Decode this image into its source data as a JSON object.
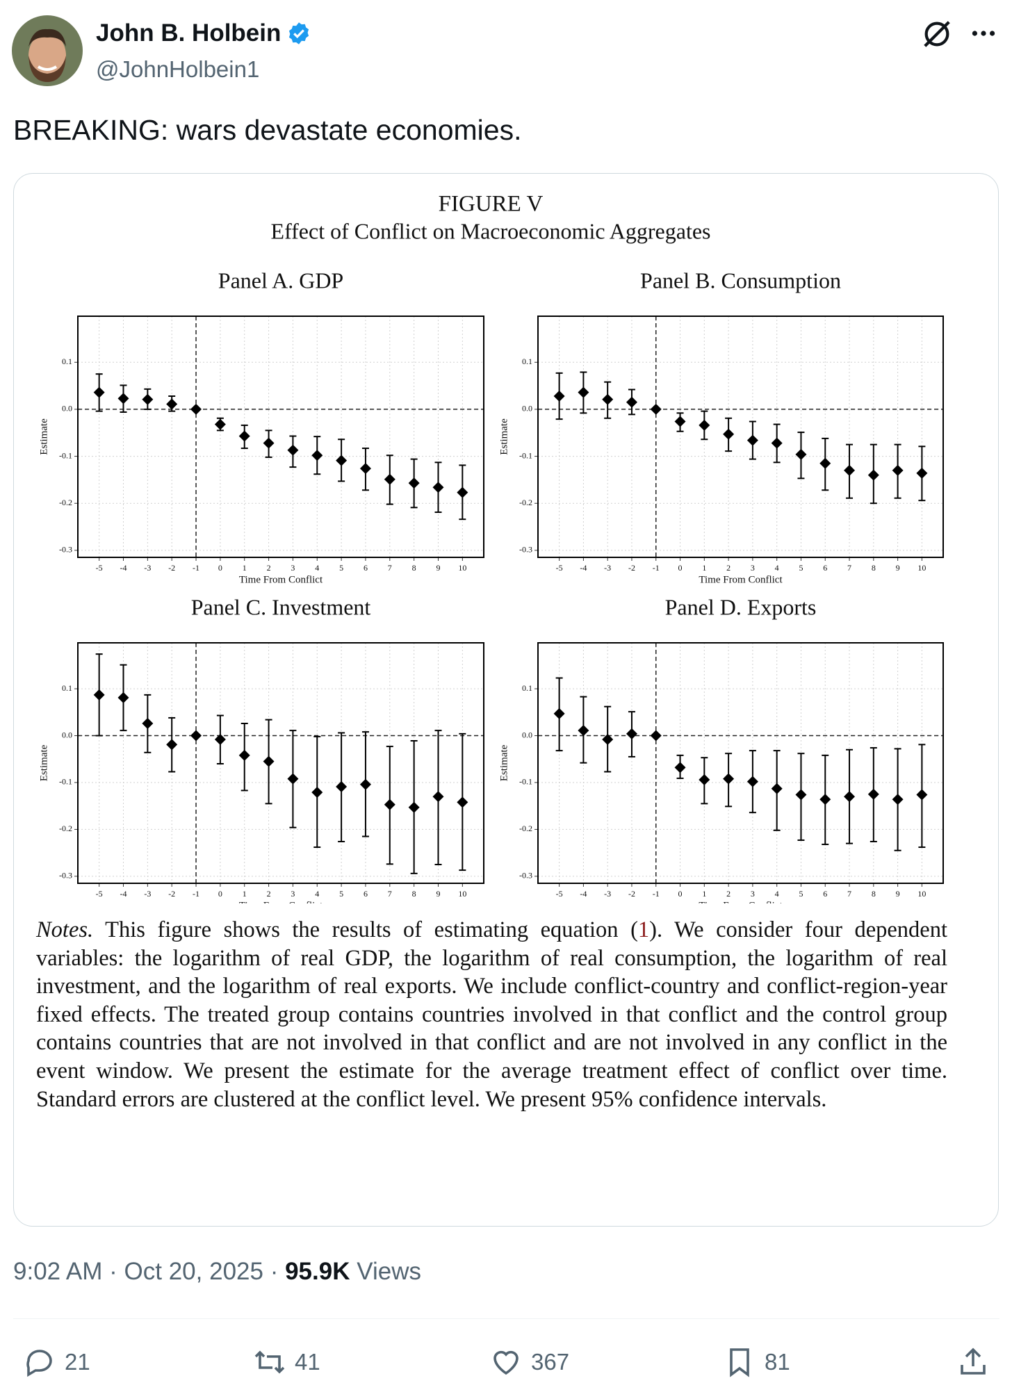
{
  "tweet": {
    "name": "John B. Holbein",
    "handle": "@JohnHolbein1",
    "text": "BREAKING: wars devastate economies.",
    "time": "9:02 AM",
    "separator": "·",
    "date": "Oct 20, 2025",
    "views": "95.9K",
    "views_label": "Views",
    "replies": 21,
    "reposts": 41,
    "likes": 367,
    "bookmarks": 81
  },
  "figure": {
    "title": "FIGURE V",
    "subtitle": "Effect of Conflict on Macroeconomic Aggregates"
  },
  "notes": {
    "label": "Notes.",
    "text_before": "This figure shows the results of estimating equation (",
    "ref": "1",
    "text_after": "). We consider four dependent variables: the logarithm of real GDP, the logarithm of real consumption, the logarithm of real investment, and the logarithm of real exports. We include conflict-country and conflict-region-year fixed effects. The treated group contains countries involved in that conflict and the control group contains countries that are not involved in that conflict and are not involved in any conflict in the event window. We present the estimate for the average treatment effect of conflict over time. Standard errors are clustered at the conflict level. We present 95% confidence intervals."
  },
  "chart_data": [
    {
      "type": "errorbar",
      "title": "Panel A. GDP",
      "xlabel": "Time From Conflict",
      "ylabel": "Estimate",
      "color": "#000000",
      "x": [
        -5,
        -4,
        -3,
        -2,
        -1,
        0,
        1,
        2,
        3,
        4,
        5,
        6,
        7,
        8,
        9,
        10
      ],
      "values": [
        0.036,
        0.023,
        0.021,
        0.011,
        0,
        -0.032,
        -0.057,
        -0.072,
        -0.087,
        -0.098,
        -0.109,
        -0.126,
        -0.149,
        -0.157,
        -0.166,
        -0.177
      ],
      "lower": [
        -0.004,
        -0.006,
        0.0,
        -0.004,
        null,
        -0.045,
        -0.083,
        -0.102,
        -0.123,
        -0.138,
        -0.153,
        -0.172,
        -0.202,
        -0.209,
        -0.219,
        -0.234
      ],
      "upper": [
        0.075,
        0.051,
        0.043,
        0.028,
        null,
        -0.019,
        -0.034,
        -0.045,
        -0.057,
        -0.058,
        -0.064,
        -0.083,
        -0.098,
        -0.106,
        -0.113,
        -0.119
      ],
      "xlim": [
        -5.88,
        10.88
      ],
      "ylim": [
        -0.315,
        0.198
      ],
      "xticks": [
        -5,
        -4,
        -3,
        -2,
        -1,
        0,
        1,
        2,
        3,
        4,
        5,
        6,
        7,
        8,
        9,
        10
      ],
      "yticks": [
        -0.3,
        -0.2,
        -0.1,
        {
          "value": 0,
          "label": "0.0"
        },
        0.1
      ],
      "grid": true,
      "reference_lines": {
        "x": -1,
        "y": 0
      }
    },
    {
      "type": "errorbar",
      "title": "Panel B. Consumption",
      "xlabel": "Time From Conflict",
      "ylabel": "Estimate",
      "color": "#000000",
      "x": [
        -5,
        -4,
        -3,
        -2,
        -1,
        0,
        1,
        2,
        3,
        4,
        5,
        6,
        7,
        8,
        9,
        10
      ],
      "values": [
        0.028,
        0.036,
        0.021,
        0.015,
        0,
        -0.026,
        -0.034,
        -0.053,
        -0.066,
        -0.072,
        -0.096,
        -0.115,
        -0.13,
        -0.14,
        -0.13,
        -0.136
      ],
      "lower": [
        -0.021,
        -0.008,
        -0.019,
        -0.011,
        null,
        -0.047,
        -0.064,
        -0.089,
        -0.106,
        -0.113,
        -0.147,
        -0.172,
        -0.189,
        -0.2,
        -0.189,
        -0.194
      ],
      "upper": [
        0.077,
        0.079,
        0.058,
        0.042,
        null,
        -0.008,
        -0.004,
        -0.019,
        -0.026,
        -0.032,
        -0.049,
        -0.062,
        -0.075,
        -0.075,
        -0.075,
        -0.079
      ],
      "xlim": [
        -5.88,
        10.88
      ],
      "ylim": [
        -0.315,
        0.198
      ],
      "xticks": [
        -5,
        -4,
        -3,
        -2,
        -1,
        0,
        1,
        2,
        3,
        4,
        5,
        6,
        7,
        8,
        9,
        10
      ],
      "yticks": [
        -0.3,
        -0.2,
        -0.1,
        {
          "value": 0,
          "label": "0.0"
        },
        0.1
      ],
      "grid": true,
      "reference_lines": {
        "x": -1,
        "y": 0
      }
    },
    {
      "type": "errorbar",
      "title": "Panel C. Investment",
      "xlabel": "Time From Conflict",
      "ylabel": "Estimate",
      "color": "#000000",
      "x": [
        -5,
        -4,
        -3,
        -2,
        -1,
        0,
        1,
        2,
        3,
        4,
        5,
        6,
        7,
        8,
        9,
        10
      ],
      "values": [
        0.087,
        0.081,
        0.026,
        -0.019,
        0,
        -0.008,
        -0.042,
        -0.055,
        -0.092,
        -0.121,
        -0.109,
        -0.104,
        -0.147,
        -0.153,
        -0.13,
        -0.142
      ],
      "lower": [
        0.0,
        0.011,
        -0.036,
        -0.077,
        null,
        -0.06,
        -0.117,
        -0.145,
        -0.196,
        -0.238,
        -0.226,
        -0.215,
        -0.274,
        -0.294,
        -0.275,
        -0.287
      ],
      "upper": [
        0.174,
        0.151,
        0.087,
        0.038,
        null,
        0.043,
        0.026,
        0.034,
        0.011,
        -0.002,
        0.006,
        0.008,
        -0.023,
        -0.011,
        0.011,
        0.004
      ],
      "xlim": [
        -5.88,
        10.88
      ],
      "ylim": [
        -0.315,
        0.198
      ],
      "xticks": [
        -5,
        -4,
        -3,
        -2,
        -1,
        0,
        1,
        2,
        3,
        4,
        5,
        6,
        7,
        8,
        9,
        10
      ],
      "yticks": [
        -0.3,
        -0.2,
        -0.1,
        {
          "value": 0,
          "label": "0.0"
        },
        0.1
      ],
      "grid": true,
      "reference_lines": {
        "x": -1,
        "y": 0
      }
    },
    {
      "type": "errorbar",
      "title": "Panel D. Exports",
      "xlabel": "Time From Conflict",
      "ylabel": "Estimate",
      "color": "#000000",
      "x": [
        -5,
        -4,
        -3,
        -2,
        -1,
        0,
        1,
        2,
        3,
        4,
        5,
        6,
        7,
        8,
        9,
        10
      ],
      "values": [
        0.047,
        0.011,
        -0.008,
        0.004,
        0,
        -0.068,
        -0.094,
        -0.092,
        -0.098,
        -0.113,
        -0.126,
        -0.136,
        -0.13,
        -0.125,
        -0.136,
        -0.126
      ],
      "lower": [
        -0.032,
        -0.058,
        -0.077,
        -0.045,
        null,
        -0.091,
        -0.145,
        -0.151,
        -0.164,
        -0.202,
        -0.223,
        -0.232,
        -0.23,
        -0.226,
        -0.245,
        -0.238
      ],
      "upper": [
        0.123,
        0.083,
        0.062,
        0.051,
        null,
        -0.042,
        -0.047,
        -0.038,
        -0.032,
        -0.032,
        -0.038,
        -0.042,
        -0.03,
        -0.026,
        -0.028,
        -0.019
      ],
      "xlim": [
        -5.88,
        10.88
      ],
      "ylim": [
        -0.315,
        0.198
      ],
      "xticks": [
        -5,
        -4,
        -3,
        -2,
        -1,
        0,
        1,
        2,
        3,
        4,
        5,
        6,
        7,
        8,
        9,
        10
      ],
      "yticks": [
        -0.3,
        -0.2,
        -0.1,
        {
          "value": 0,
          "label": "0.0"
        },
        0.1
      ],
      "grid": true,
      "reference_lines": {
        "x": -1,
        "y": 0
      }
    }
  ]
}
